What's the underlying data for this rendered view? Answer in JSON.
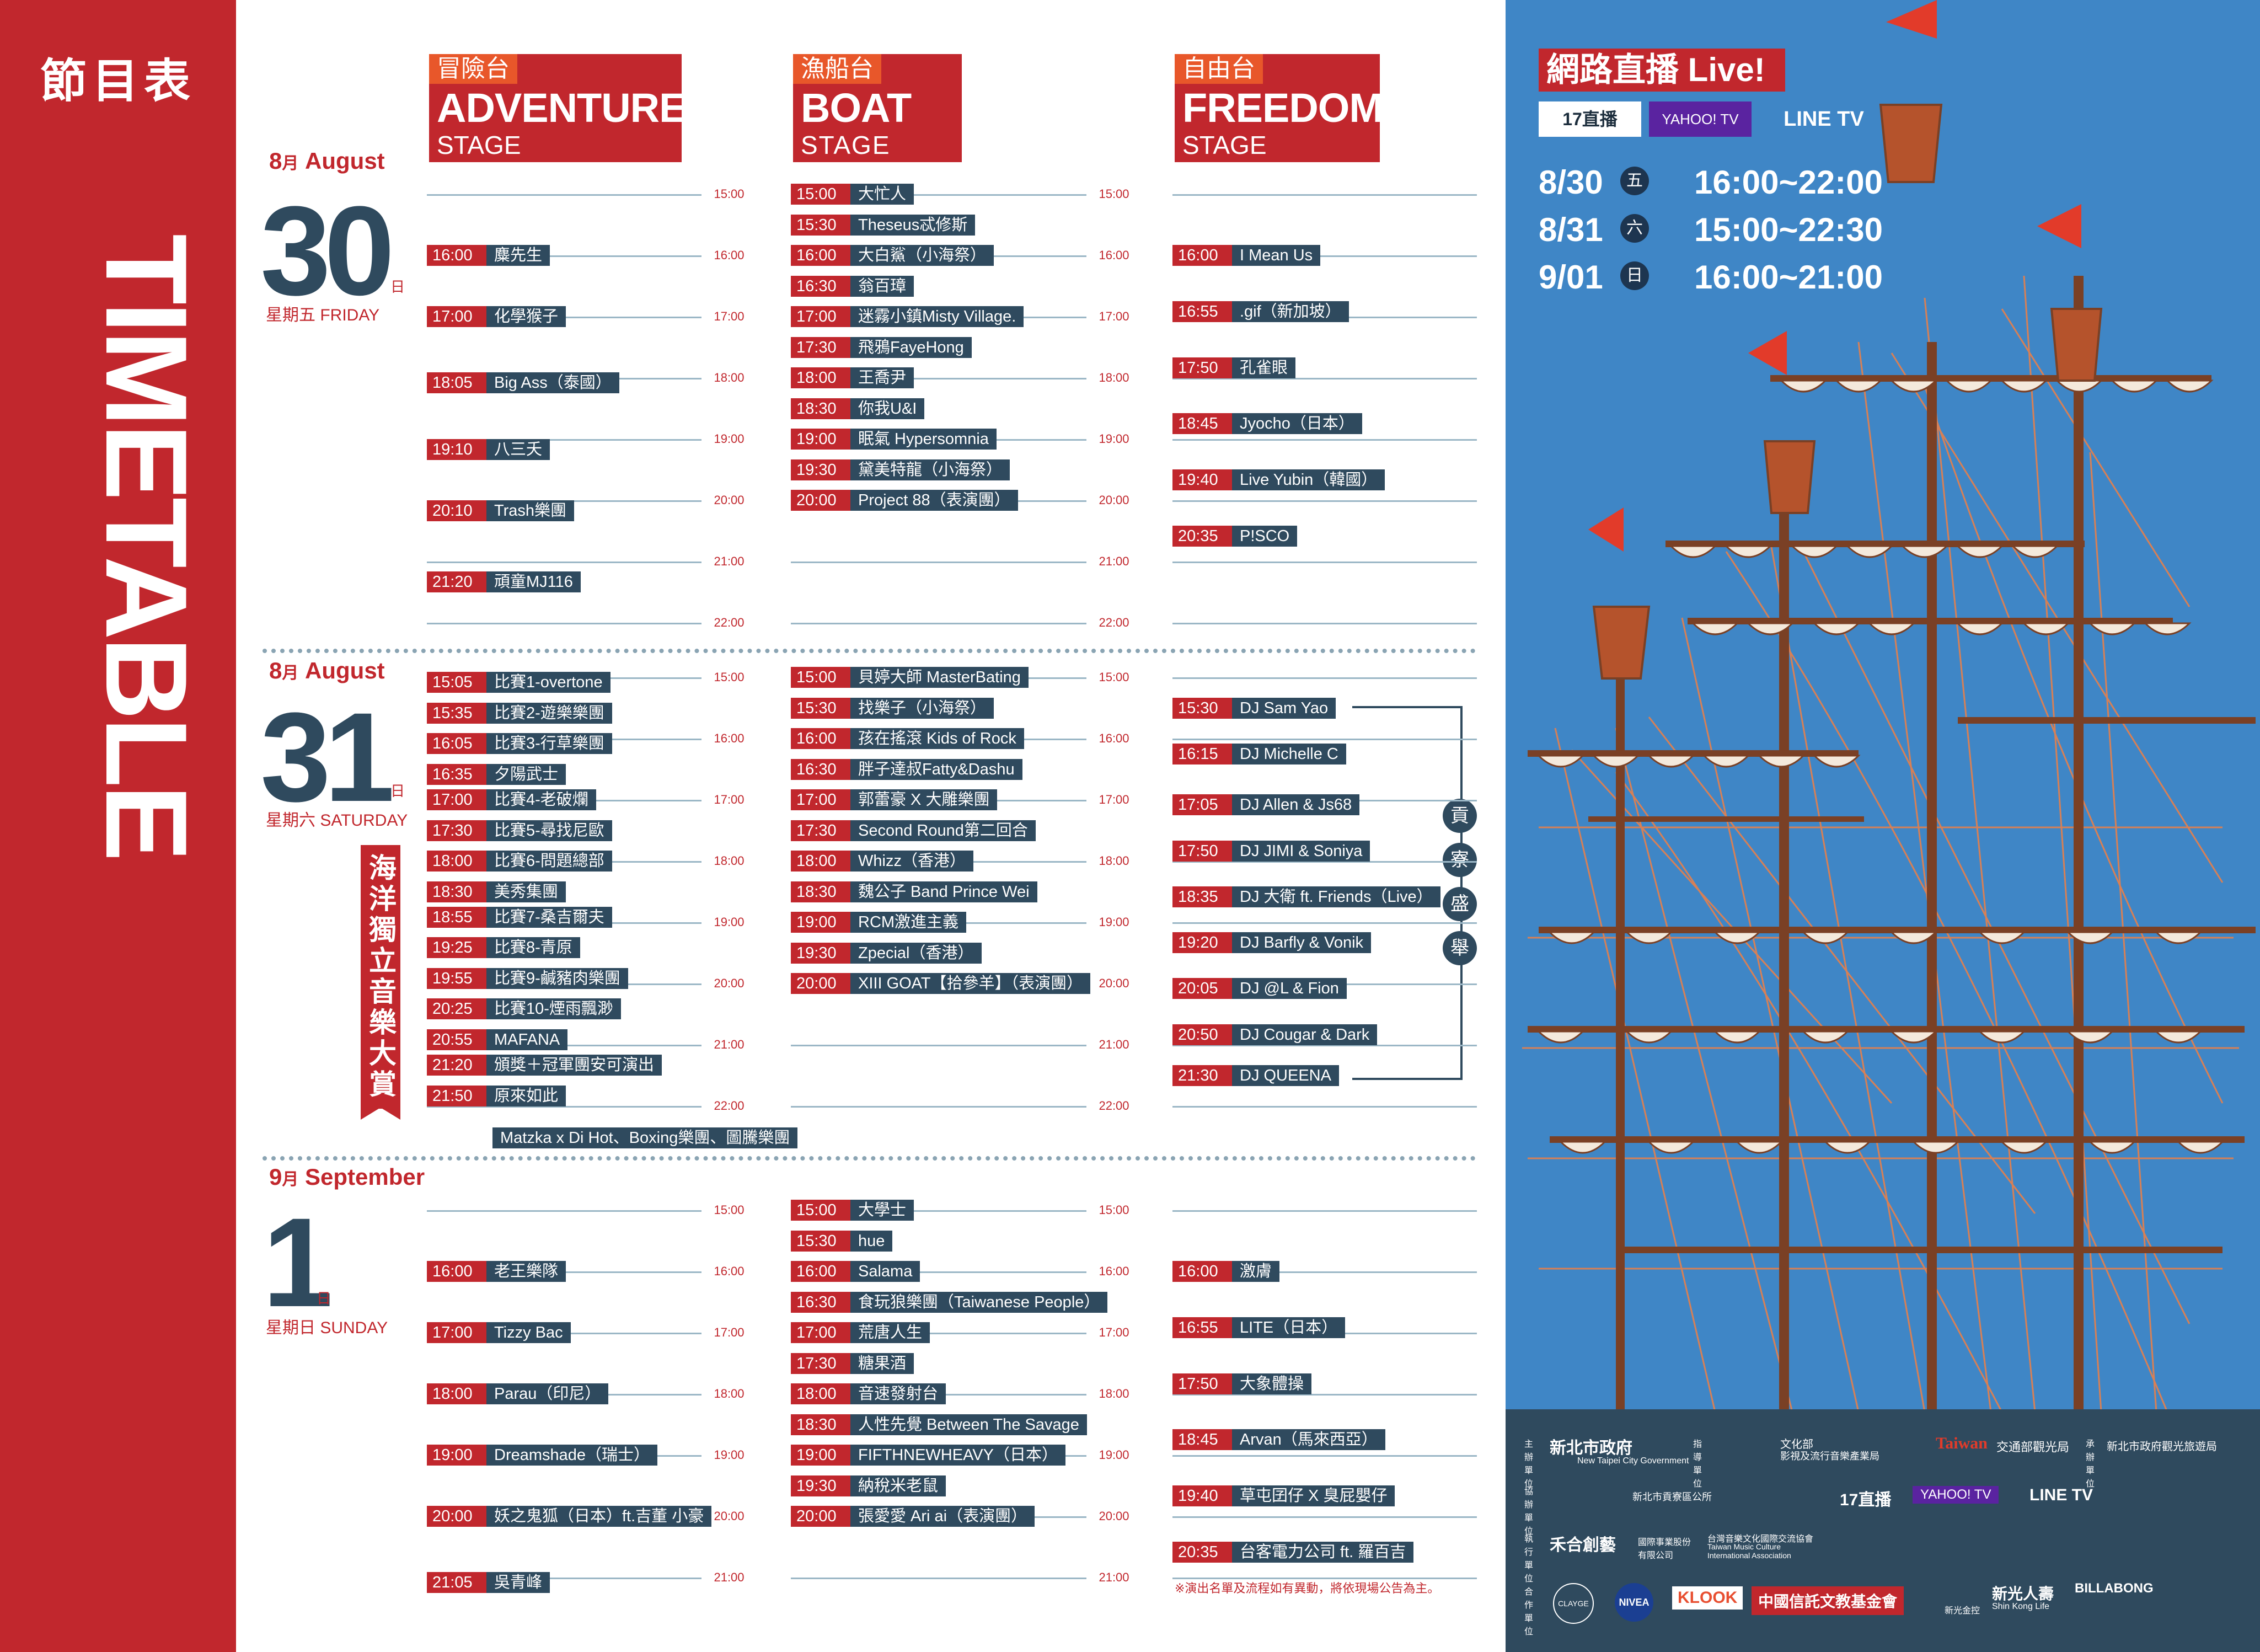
{
  "banner": {
    "title_cn": "節目表",
    "title_en": "TIMETABLE"
  },
  "stages": [
    {
      "cn": "冒險台",
      "en": "ADVENTURE",
      "sub": "STAGE"
    },
    {
      "cn": "漁船台",
      "en": "BOAT",
      "sub": "STAGE"
    },
    {
      "cn": "自由台",
      "en": "FREEDOM",
      "sub": "STAGE"
    }
  ],
  "days": [
    {
      "month": "8月 August",
      "month_num": "8",
      "month_cn": "月",
      "month_en": "August",
      "day": "30",
      "ri": "日",
      "weekday": "星期五 FRIDAY",
      "times": [
        "15:00",
        "16:00",
        "17:00",
        "18:00",
        "19:00",
        "20:00",
        "21:00",
        "22:00"
      ]
    },
    {
      "month_num": "8",
      "month_cn": "月",
      "month_en": "August",
      "day": "31",
      "ri": "日",
      "weekday": "星期六 SATURDAY",
      "times": [
        "15:00",
        "16:00",
        "17:00",
        "18:00",
        "19:00",
        "20:00",
        "21:00",
        "22:00"
      ]
    },
    {
      "month_num": "9",
      "month_cn": "月",
      "month_en": "September",
      "day": "1",
      "ri": "日",
      "weekday": "星期日 SUNDAY",
      "times": [
        "15:00",
        "16:00",
        "17:00",
        "18:00",
        "19:00",
        "20:00",
        "21:00"
      ]
    }
  ],
  "slots": {
    "d1_adv": [
      [
        "16:00",
        "麋先生"
      ],
      [
        "17:00",
        "化學猴子"
      ],
      [
        "18:05",
        "Big Ass（泰國）"
      ],
      [
        "19:10",
        "八三夭"
      ],
      [
        "20:10",
        "Trash樂團"
      ],
      [
        "21:20",
        "頑童MJ116"
      ]
    ],
    "d1_boat": [
      [
        "15:00",
        "大忙人"
      ],
      [
        "15:30",
        "Theseus忒修斯"
      ],
      [
        "16:00",
        "大白鯊（小海祭）"
      ],
      [
        "16:30",
        "翁百璋"
      ],
      [
        "17:00",
        "迷霧小鎮Misty Village."
      ],
      [
        "17:30",
        "飛鴉FayeHong"
      ],
      [
        "18:00",
        "王喬尹"
      ],
      [
        "18:30",
        "你我U&I"
      ],
      [
        "19:00",
        "眠氣 Hypersomnia"
      ],
      [
        "19:30",
        "黛美特龍（小海祭）"
      ],
      [
        "20:00",
        "Project 88（表演團）"
      ]
    ],
    "d1_free": [
      [
        "16:00",
        "I Mean Us"
      ],
      [
        "16:55",
        ".gif（新加坡）"
      ],
      [
        "17:50",
        "孔雀眼"
      ],
      [
        "18:45",
        "Jyocho（日本）"
      ],
      [
        "19:40",
        "Live Yubin（韓國）"
      ],
      [
        "20:35",
        "P!SCO"
      ]
    ],
    "d2_adv": [
      [
        "15:05",
        "比賽1-overtone"
      ],
      [
        "15:35",
        "比賽2-遊樂樂團"
      ],
      [
        "16:05",
        "比賽3-行草樂團"
      ],
      [
        "16:35",
        "夕陽武士"
      ],
      [
        "17:00",
        "比賽4-老破爛"
      ],
      [
        "17:30",
        "比賽5-尋找尼歐"
      ],
      [
        "18:00",
        "比賽6-問題總部"
      ],
      [
        "18:30",
        "美秀集團"
      ],
      [
        "18:55",
        "比賽7-桑吉爾夫"
      ],
      [
        "19:25",
        "比賽8-青原"
      ],
      [
        "19:55",
        "比賽9-鹹豬肉樂團"
      ],
      [
        "20:25",
        "比賽10-煙雨飄渺"
      ],
      [
        "20:55",
        "MAFANA"
      ],
      [
        "21:20",
        "頒獎＋冠軍團安可演出"
      ],
      [
        "21:50",
        "原來如此"
      ]
    ],
    "d2_adv_extra": "Matzka x Di Hot、Boxing樂團、圖騰樂團",
    "d2_boat": [
      [
        "15:00",
        "貝婷大師 MasterBating"
      ],
      [
        "15:30",
        "找樂子（小海祭）"
      ],
      [
        "16:00",
        "孩在搖滾 Kids of Rock"
      ],
      [
        "16:30",
        "胖子達叔Fatty&Dashu"
      ],
      [
        "17:00",
        "郭蕾豪 X 大雕樂團"
      ],
      [
        "17:30",
        "Second Round第二回合"
      ],
      [
        "18:00",
        "Whizz（香港）"
      ],
      [
        "18:30",
        "魏公子 Band Prince Wei"
      ],
      [
        "19:00",
        "RCM激進主義"
      ],
      [
        "19:30",
        "Zpecial（香港）"
      ],
      [
        "20:00",
        "XIII GOAT【拾參羊】（表演團）"
      ]
    ],
    "d2_free": [
      [
        "15:30",
        "DJ Sam Yao"
      ],
      [
        "16:15",
        "DJ Michelle C"
      ],
      [
        "17:05",
        "DJ Allen & Js68"
      ],
      [
        "17:50",
        "DJ JIMI & Soniya"
      ],
      [
        "18:35",
        "DJ 大衛 ft. Friends（Live）"
      ],
      [
        "19:20",
        "DJ Barfly & Vonik"
      ],
      [
        "20:05",
        "DJ @L & Fion"
      ],
      [
        "20:50",
        "DJ Cougar & Dark"
      ],
      [
        "21:30",
        "DJ QUEENA"
      ]
    ],
    "d3_adv": [
      [
        "16:00",
        "老王樂隊"
      ],
      [
        "17:00",
        "Tizzy Bac"
      ],
      [
        "18:00",
        "Parau（印尼）"
      ],
      [
        "19:00",
        "Dreamshade（瑞士）"
      ],
      [
        "20:00",
        "妖之鬼狐（日本）ft.吉董 小豪"
      ],
      [
        "21:05",
        "吳青峰"
      ]
    ],
    "d3_boat": [
      [
        "15:00",
        "大學士"
      ],
      [
        "15:30",
        "hue"
      ],
      [
        "16:00",
        "Salama"
      ],
      [
        "16:30",
        "食玩狼樂團（Taiwanese People）"
      ],
      [
        "17:00",
        "荒唐人生"
      ],
      [
        "17:30",
        "糖果酒"
      ],
      [
        "18:00",
        "音速發射台"
      ],
      [
        "18:30",
        "人性先覺 Between The Savage"
      ],
      [
        "19:00",
        "FIFTHNEWHEAVY（日本）"
      ],
      [
        "19:30",
        "納稅米老鼠"
      ],
      [
        "20:00",
        "張愛愛 Ari ai（表演團）"
      ]
    ],
    "d3_free": [
      [
        "16:00",
        "激膚"
      ],
      [
        "16:55",
        "LITE（日本）"
      ],
      [
        "17:50",
        "大象體操"
      ],
      [
        "18:45",
        "Arvan（馬來西亞）"
      ],
      [
        "19:40",
        "草屯囝仔 X 臭屁嬰仔"
      ],
      [
        "20:35",
        "台客電力公司 ft. 羅百吉"
      ]
    ]
  },
  "contest_label": "海洋獨立音樂大賞",
  "bracket_chars": [
    "貢",
    "寮",
    "盛",
    "舉"
  ],
  "notice": "※演出名單及流程如有異動，將依現場公告為主。",
  "live": {
    "title": "網路直播 Live!",
    "platforms": [
      "17直播",
      "YAHOO! TV",
      "LINE TV"
    ],
    "schedule": [
      {
        "date": "8/30",
        "day": "五",
        "time": "16:00~22:00"
      },
      {
        "date": "8/31",
        "day": "六",
        "time": "15:00~22:30"
      },
      {
        "date": "9/01",
        "day": "日",
        "time": "16:00~21:00"
      }
    ]
  },
  "sponsors": {
    "row1": {
      "label_a": "主辦單位",
      "gov": "新北市政府",
      "gov_en": "New Taipei City Government",
      "label_b": "指導單位",
      "moc": "文化部",
      "moc_sub": "影視及流行音樂產業局",
      "taiwan": "Taiwan",
      "tb": "交通部觀光局",
      "label_c": "承辦單位",
      "org": "新北市政府觀光旅遊局"
    },
    "row2": {
      "label": "協辦單位",
      "gongliao": "新北市貢寮區公所",
      "platforms": [
        "17直播",
        "YAHOO! TV",
        "LINE TV"
      ]
    },
    "row3": {
      "label": "執行單位",
      "company": "禾合創藝",
      "company_sub": "國際事業股份有限公司",
      "assoc": "台灣音樂文化國際交流協會",
      "assoc_en": "Taiwan Music Culture International Association"
    },
    "row4": {
      "label": "合作單位",
      "brands": [
        "CLAYGE",
        "NIVEA",
        "KLOOK",
        "中國信託文教基金會",
        "新光金控",
        "新光人壽",
        "BILLABONG"
      ],
      "shin_kong_en": "Shin Kong Life"
    }
  },
  "colors": {
    "red": "#c1272d",
    "navy": "#2f4a5e",
    "orange": "#e8572a",
    "sky": "#3f86c6"
  }
}
